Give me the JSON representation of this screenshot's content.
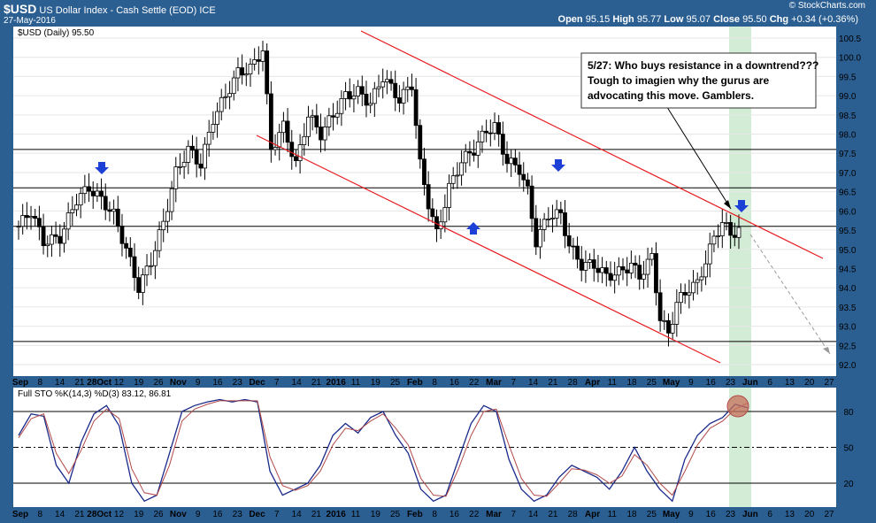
{
  "header": {
    "symbol": "$USD",
    "name": "US Dollar Index - Cash Settle (EOD)",
    "exchange": "ICE",
    "date": "27-May-2016",
    "ohlc": "Open 95.15  High 95.77  Low 95.07  Close 95.50  Chg +0.34 (+0.36%)",
    "open_label": "Open",
    "open": "95.15",
    "high_label": "High",
    "high": "95.77",
    "low_label": "Low",
    "low": "95.07",
    "close_label": "Close",
    "close": "95.50",
    "chg_label": "Chg",
    "chg": "+0.34 (+0.36%)",
    "watermark": "© StockCharts.com"
  },
  "legend": {
    "price": "$USD (Daily) 95.50",
    "sto": "Full STO %K(14,3) %D(3) 83.12, 86.81"
  },
  "annotation": [
    "5/27: Who buys resistance in a downtrend???",
    "Tough to imagien why the gurus are",
    "advocating this move. Gamblers."
  ],
  "colors": {
    "background": "#2b5f92",
    "panel": "#ffffff",
    "channel": "#e8191e",
    "arrow": "#1c3fd6",
    "highlight": "#d3ecd6",
    "kline": "#1a2a8a",
    "dline": "#b24a4a",
    "circle": "#c7705a"
  },
  "chart_data": [
    {
      "type": "candlestick",
      "title": "$USD (Daily) 95.50",
      "ylim": [
        91.7,
        100.8
      ],
      "yticks": [
        92.0,
        92.5,
        93.0,
        93.5,
        94.0,
        94.5,
        95.0,
        95.5,
        96.0,
        96.5,
        97.0,
        97.5,
        98.0,
        98.5,
        99.0,
        99.5,
        100.0,
        100.5
      ],
      "x_labels": [
        "Sep",
        "8",
        "14",
        "21",
        "28Oct",
        "12",
        "19",
        "26",
        "Nov",
        "9",
        "16",
        "23",
        "Dec",
        "7",
        "14",
        "21",
        "2016",
        "11",
        "19",
        "25",
        "Feb",
        "8",
        "16",
        "22",
        "Mar",
        "7",
        "14",
        "21",
        "28",
        "Apr",
        "11",
        "18",
        "25",
        "May",
        "9",
        "16",
        "23",
        "Jun",
        "6",
        "13",
        "20",
        "27"
      ],
      "close_path": [
        [
          0,
          95.6
        ],
        [
          3,
          96.0
        ],
        [
          6,
          95.2
        ],
        [
          10,
          95.3
        ],
        [
          14,
          96.3
        ],
        [
          17,
          96.6
        ],
        [
          20,
          96.3
        ],
        [
          23,
          95.9
        ],
        [
          26,
          95.0
        ],
        [
          29,
          94.0
        ],
        [
          32,
          94.7
        ],
        [
          35,
          95.7
        ],
        [
          38,
          97.0
        ],
        [
          41,
          97.6
        ],
        [
          44,
          97.2
        ],
        [
          47,
          98.4
        ],
        [
          50,
          99.0
        ],
        [
          53,
          99.6
        ],
        [
          56,
          99.7
        ],
        [
          59,
          100.2
        ],
        [
          61,
          97.6
        ],
        [
          64,
          98.2
        ],
        [
          67,
          97.2
        ],
        [
          70,
          98.5
        ],
        [
          73,
          98.0
        ],
        [
          76,
          98.5
        ],
        [
          79,
          99.0
        ],
        [
          82,
          99.1
        ],
        [
          85,
          98.8
        ],
        [
          88,
          99.5
        ],
        [
          92,
          98.9
        ],
        [
          95,
          99.3
        ],
        [
          97,
          97.2
        ],
        [
          99,
          96.2
        ],
        [
          101,
          95.4
        ],
        [
          104,
          96.6
        ],
        [
          107,
          97.3
        ],
        [
          110,
          97.6
        ],
        [
          113,
          98.1
        ],
        [
          115,
          98.2
        ],
        [
          118,
          97.3
        ],
        [
          121,
          97.1
        ],
        [
          123,
          96.5
        ],
        [
          125,
          95.2
        ],
        [
          128,
          95.9
        ],
        [
          131,
          95.9
        ],
        [
          133,
          95.1
        ],
        [
          136,
          94.6
        ],
        [
          139,
          94.6
        ],
        [
          142,
          94.3
        ],
        [
          145,
          94.4
        ],
        [
          148,
          94.6
        ],
        [
          150,
          94.3
        ],
        [
          153,
          94.8
        ],
        [
          155,
          93.2
        ],
        [
          157,
          92.8
        ],
        [
          159,
          93.6
        ],
        [
          162,
          94.0
        ],
        [
          164,
          94.1
        ],
        [
          166,
          94.7
        ],
        [
          168,
          95.3
        ],
        [
          170,
          95.7
        ],
        [
          172,
          95.4
        ],
        [
          174,
          95.5
        ]
      ],
      "axis_note": "x = trading-day index; y = price"
    },
    {
      "type": "line",
      "title": "Full STO %K(14,3) %D(3) 83.12, 86.81",
      "ylim": [
        0,
        100
      ],
      "yticks": [
        20,
        50,
        80
      ],
      "series": [
        {
          "name": "%K",
          "points": [
            [
              0,
              60
            ],
            [
              3,
              78
            ],
            [
              6,
              76
            ],
            [
              9,
              35
            ],
            [
              12,
              20
            ],
            [
              15,
              55
            ],
            [
              18,
              78
            ],
            [
              21,
              85
            ],
            [
              24,
              68
            ],
            [
              27,
              20
            ],
            [
              30,
              5
            ],
            [
              33,
              10
            ],
            [
              36,
              45
            ],
            [
              39,
              80
            ],
            [
              42,
              85
            ],
            [
              45,
              88
            ],
            [
              48,
              90
            ],
            [
              51,
              88
            ],
            [
              54,
              90
            ],
            [
              57,
              88
            ],
            [
              60,
              30
            ],
            [
              63,
              10
            ],
            [
              66,
              15
            ],
            [
              69,
              20
            ],
            [
              72,
              35
            ],
            [
              75,
              60
            ],
            [
              78,
              70
            ],
            [
              81,
              62
            ],
            [
              84,
              75
            ],
            [
              87,
              80
            ],
            [
              90,
              60
            ],
            [
              93,
              45
            ],
            [
              96,
              15
            ],
            [
              99,
              5
            ],
            [
              102,
              10
            ],
            [
              105,
              40
            ],
            [
              108,
              70
            ],
            [
              111,
              85
            ],
            [
              114,
              80
            ],
            [
              117,
              40
            ],
            [
              120,
              15
            ],
            [
              123,
              5
            ],
            [
              126,
              10
            ],
            [
              129,
              25
            ],
            [
              132,
              35
            ],
            [
              135,
              30
            ],
            [
              138,
              25
            ],
            [
              141,
              15
            ],
            [
              144,
              30
            ],
            [
              147,
              50
            ],
            [
              150,
              30
            ],
            [
              153,
              15
            ],
            [
              156,
              5
            ],
            [
              159,
              40
            ],
            [
              162,
              60
            ],
            [
              165,
              70
            ],
            [
              168,
              75
            ],
            [
              171,
              86
            ],
            [
              174,
              83
            ]
          ]
        },
        {
          "name": "%D",
          "points": [
            [
              0,
              58
            ],
            [
              3,
              74
            ],
            [
              6,
              78
            ],
            [
              9,
              45
            ],
            [
              12,
              28
            ],
            [
              15,
              48
            ],
            [
              18,
              72
            ],
            [
              21,
              82
            ],
            [
              24,
              74
            ],
            [
              27,
              32
            ],
            [
              30,
              12
            ],
            [
              33,
              10
            ],
            [
              36,
              35
            ],
            [
              39,
              72
            ],
            [
              42,
              82
            ],
            [
              45,
              86
            ],
            [
              48,
              89
            ],
            [
              51,
              89
            ],
            [
              54,
              89
            ],
            [
              57,
              89
            ],
            [
              60,
              42
            ],
            [
              63,
              18
            ],
            [
              66,
              14
            ],
            [
              69,
              18
            ],
            [
              72,
              30
            ],
            [
              75,
              52
            ],
            [
              78,
              66
            ],
            [
              81,
              64
            ],
            [
              84,
              72
            ],
            [
              87,
              78
            ],
            [
              90,
              66
            ],
            [
              93,
              52
            ],
            [
              96,
              24
            ],
            [
              99,
              10
            ],
            [
              102,
              9
            ],
            [
              105,
              32
            ],
            [
              108,
              60
            ],
            [
              111,
              80
            ],
            [
              114,
              82
            ],
            [
              117,
              52
            ],
            [
              120,
              24
            ],
            [
              123,
              10
            ],
            [
              126,
              9
            ],
            [
              129,
              20
            ],
            [
              132,
              32
            ],
            [
              135,
              31
            ],
            [
              138,
              27
            ],
            [
              141,
              20
            ],
            [
              144,
              26
            ],
            [
              147,
              44
            ],
            [
              150,
              35
            ],
            [
              153,
              20
            ],
            [
              156,
              10
            ],
            [
              159,
              30
            ],
            [
              162,
              52
            ],
            [
              165,
              66
            ],
            [
              168,
              72
            ],
            [
              171,
              82
            ],
            [
              174,
              87
            ]
          ]
        }
      ]
    }
  ]
}
